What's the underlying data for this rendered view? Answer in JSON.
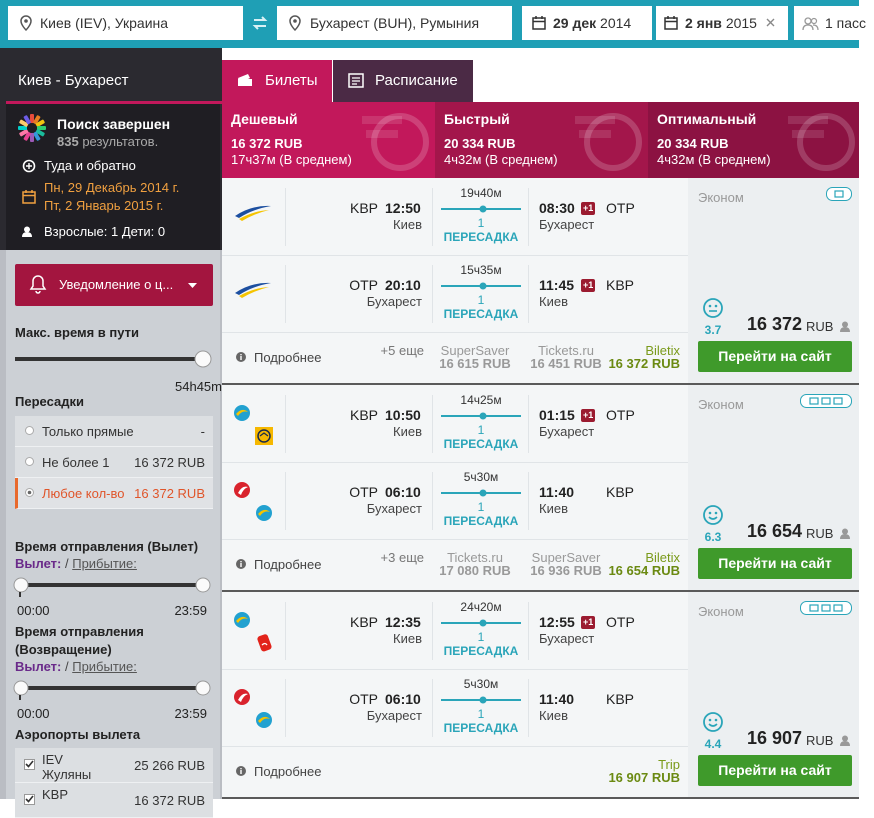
{
  "search": {
    "from": "Киев (IEV), Украина",
    "to": "Бухарест (BUH), Румыния",
    "depart_day": "29 дек",
    "depart_year": "2014",
    "return_day": "2 янв",
    "return_year": "2015",
    "passengers": "1 пасс"
  },
  "sidebar": {
    "route": "Киев - Бухарест",
    "status": "Поиск завершен",
    "count": "835",
    "count_label": "результатов.",
    "trip_type": "Туда и обратно",
    "dates": [
      "Пн, 29 Декабрь 2014 г.",
      "Пт, 2 Январь 2015 г."
    ],
    "travellers": "Взрослые: 1 Дети: 0",
    "notify": "Уведомление о ц...",
    "filters": {
      "max_time_title": "Макс. время в пути",
      "max_time_value": "54h45m",
      "stops_title": "Пересадки",
      "stops": [
        {
          "label": "Только прямые",
          "price": "-"
        },
        {
          "label": "Не более 1",
          "price": "16 372 RUB"
        },
        {
          "label": "Любое кол-во",
          "price": "16 372 RUB"
        }
      ],
      "times": [
        {
          "title": "Время отправления (Вылет)",
          "dep": "Вылет:",
          "sep": "/",
          "arr": "Прибытие:",
          "from": "00:00",
          "to": "23:59"
        },
        {
          "title": "Время отправления (Возвращение)",
          "dep": "Вылет:",
          "sep": "/",
          "arr": "Прибытие:",
          "from": "00:00",
          "to": "23:59"
        }
      ],
      "airports_title": "Аэропорты вылета",
      "airports": [
        {
          "code": "IEV",
          "name": "Жуляны",
          "price": "25 266 RUB"
        },
        {
          "code": "KBP",
          "price": "16 372 RUB"
        }
      ]
    }
  },
  "tabs": [
    "Билеты",
    "Расписание"
  ],
  "summary": [
    {
      "title": "Дешевый",
      "price": "16 372 RUB",
      "duration": "17ч37м (В среднем)"
    },
    {
      "title": "Быстрый",
      "price": "20 334 RUB",
      "duration": "4ч32м (В среднем)"
    },
    {
      "title": "Оптимальный",
      "price": "20 334 RUB",
      "duration": "4ч32м (В среднем)"
    }
  ],
  "results": [
    {
      "class": "Эконом",
      "legs": [
        {
          "from_code": "KBP",
          "dep": "12:50",
          "from_city": "Киев",
          "duration": "19ч40м",
          "stops": "1",
          "stops_label": "ПЕРЕСАДКА",
          "arr": "08:30",
          "day_offset": "+1",
          "to_code": "OTP",
          "to_city": "Бухарест"
        },
        {
          "from_code": "OTP",
          "dep": "20:10",
          "from_city": "Бухарест",
          "duration": "15ч35м",
          "stops": "1",
          "stops_label": "ПЕРЕСАДКА",
          "arr": "11:45",
          "day_offset": "+1",
          "to_code": "KBP",
          "to_city": "Киев"
        }
      ],
      "details": "Подробнее",
      "more": "+5 еще",
      "providers": [
        {
          "name": "SuperSaver",
          "price": "16 615 RUB"
        },
        {
          "name": "Tickets.ru",
          "price": "16 451 RUB"
        },
        {
          "name": "Biletix",
          "price": "16 372 RUB"
        }
      ],
      "rating": "3.7",
      "price": "16 372",
      "currency": "RUB",
      "button": "Перейти на сайт"
    },
    {
      "class": "Эконом",
      "legs": [
        {
          "from_code": "KBP",
          "dep": "10:50",
          "from_city": "Киев",
          "duration": "14ч25м",
          "stops": "1",
          "stops_label": "ПЕРЕСАДКА",
          "arr": "01:15",
          "day_offset": "+1",
          "to_code": "OTP",
          "to_city": "Бухарест"
        },
        {
          "from_code": "OTP",
          "dep": "06:10",
          "from_city": "Бухарест",
          "duration": "5ч30м",
          "stops": "1",
          "stops_label": "ПЕРЕСАДКА",
          "arr": "11:40",
          "to_code": "KBP",
          "to_city": "Киев"
        }
      ],
      "details": "Подробнее",
      "more": "+3 еще",
      "providers": [
        {
          "name": "Tickets.ru",
          "price": "17 080 RUB"
        },
        {
          "name": "SuperSaver",
          "price": "16 936 RUB"
        },
        {
          "name": "Biletix",
          "price": "16 654 RUB"
        }
      ],
      "rating": "6.3",
      "price": "16 654",
      "currency": "RUB",
      "button": "Перейти на сайт"
    },
    {
      "class": "Эконом",
      "legs": [
        {
          "from_code": "KBP",
          "dep": "12:35",
          "from_city": "Киев",
          "duration": "24ч20м",
          "stops": "1",
          "stops_label": "ПЕРЕСАДКА",
          "arr": "12:55",
          "day_offset": "+1",
          "to_code": "OTP",
          "to_city": "Бухарест"
        },
        {
          "from_code": "OTP",
          "dep": "06:10",
          "from_city": "Бухарест",
          "duration": "5ч30м",
          "stops": "1",
          "stops_label": "ПЕРЕСАДКА",
          "arr": "11:40",
          "to_code": "KBP",
          "to_city": "Киев"
        }
      ],
      "details": "Подробнее",
      "providers": [
        {
          "name": "Trip",
          "price": "16 907 RUB"
        }
      ],
      "rating": "4.4",
      "price": "16 907",
      "currency": "RUB",
      "button": "Перейти на сайт"
    }
  ]
}
